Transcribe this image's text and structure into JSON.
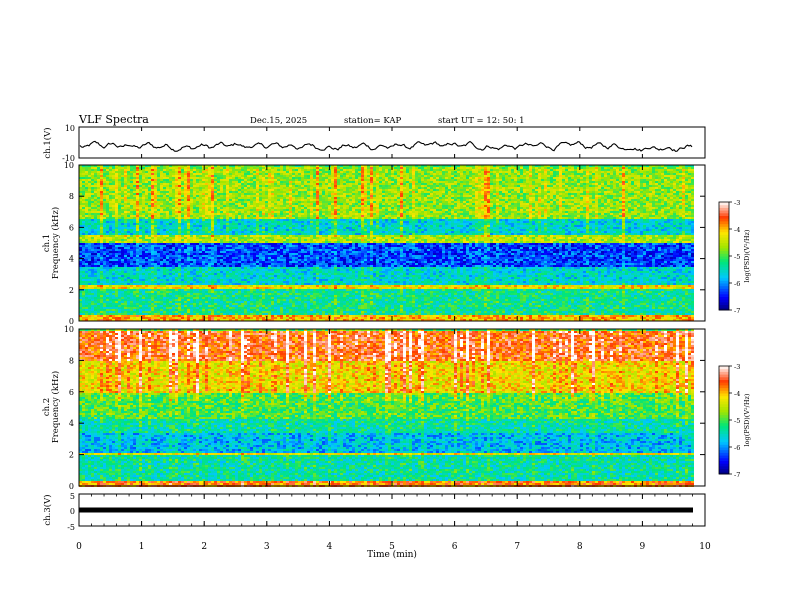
{
  "header": {
    "title": "VLF Spectra",
    "date": "Dec.15, 2025",
    "station": "station= KAP",
    "start": "start  UT =   12: 50: 1"
  },
  "chart_data": [
    {
      "type": "line",
      "name": "ch1-waveform",
      "ylabel": "ch.1(V)",
      "ylim": [
        -10,
        10
      ],
      "yticks": [
        10,
        -10
      ],
      "xlim": [
        0,
        10
      ],
      "baseline": -2.5,
      "amplitude": 3.5
    },
    {
      "type": "heatmap",
      "name": "ch1-spectrogram",
      "ylabel": "ch.1\nFrequency (kHz)",
      "ylim": [
        0,
        10
      ],
      "yticks": [
        0,
        2,
        4,
        6,
        8,
        10
      ],
      "xlim": [
        0,
        9.82
      ],
      "colorbar": {
        "label": "log(PSD)(V²/Hz)",
        "range": [
          -7,
          -3
        ],
        "ticks": [
          -3,
          -4,
          -5,
          -6,
          -7
        ]
      },
      "bands": [
        {
          "from": 0.0,
          "to": 0.5,
          "level": -4.0
        },
        {
          "from": 0.5,
          "to": 2.1,
          "level": -5.3
        },
        {
          "from": 2.1,
          "to": 2.4,
          "level": -4.2
        },
        {
          "from": 2.4,
          "to": 3.5,
          "level": -5.6
        },
        {
          "from": 3.5,
          "to": 5.1,
          "level": -6.3
        },
        {
          "from": 5.1,
          "to": 5.6,
          "level": -4.6
        },
        {
          "from": 5.6,
          "to": 6.6,
          "level": -5.6
        },
        {
          "from": 6.6,
          "to": 10.0,
          "level": -4.7
        }
      ]
    },
    {
      "type": "heatmap",
      "name": "ch2-spectrogram",
      "ylabel": "ch.2\nFrequency (kHz)",
      "ylim": [
        0,
        10
      ],
      "yticks": [
        0,
        2,
        4,
        6,
        8,
        10
      ],
      "xlim": [
        0,
        9.82
      ],
      "colorbar": {
        "label": "log(PSD)(V²/Hz)",
        "range": [
          -7,
          -3
        ],
        "ticks": [
          -3,
          -4,
          -5,
          -6,
          -7
        ]
      },
      "bands": [
        {
          "from": 0.0,
          "to": 0.4,
          "level": -3.8
        },
        {
          "from": 0.4,
          "to": 2.0,
          "level": -5.4
        },
        {
          "from": 2.0,
          "to": 2.2,
          "level": -4.3
        },
        {
          "from": 2.2,
          "to": 3.4,
          "level": -5.8
        },
        {
          "from": 3.4,
          "to": 4.3,
          "level": -5.4
        },
        {
          "from": 4.3,
          "to": 6.0,
          "level": -5.0
        },
        {
          "from": 6.0,
          "to": 8.0,
          "level": -4.2
        },
        {
          "from": 8.0,
          "to": 10.0,
          "level": -3.6
        }
      ]
    },
    {
      "type": "line",
      "name": "ch3-waveform",
      "ylabel": "ch.3(V)",
      "ylim": [
        -5,
        5
      ],
      "yticks": [
        5,
        0,
        -5
      ],
      "xlim": [
        0,
        10
      ],
      "level": 0,
      "xlabel": "Time  (min)",
      "xticks": [
        0,
        1,
        2,
        3,
        4,
        5,
        6,
        7,
        8,
        9,
        10
      ]
    }
  ]
}
